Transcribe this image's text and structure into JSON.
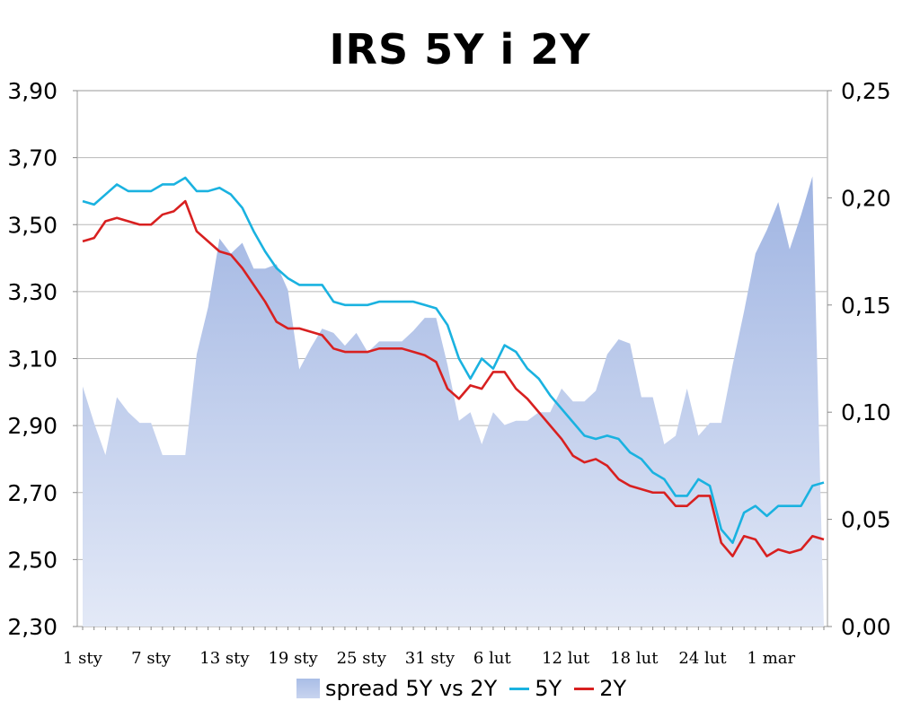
{
  "chart_data": {
    "type": "line",
    "title": "IRS 5Y i 2Y",
    "xlabel": "",
    "ylabel": "",
    "y_left": {
      "min": 2.3,
      "max": 3.9,
      "ticks": [
        "2,30",
        "2,50",
        "2,70",
        "2,90",
        "3,10",
        "3,30",
        "3,50",
        "3,70",
        "3,90"
      ]
    },
    "y_right": {
      "min": 0.0,
      "max": 0.25,
      "ticks": [
        "0,00",
        "0,05",
        "0,10",
        "0,15",
        "0,20",
        "0,25"
      ]
    },
    "x_ticks": [
      {
        "label": "1 sty",
        "index": 0
      },
      {
        "label": "7 sty",
        "index": 6
      },
      {
        "label": "13 sty",
        "index": 12
      },
      {
        "label": "19 sty",
        "index": 18
      },
      {
        "label": "25 sty",
        "index": 24
      },
      {
        "label": "31 sty",
        "index": 30
      },
      {
        "label": "6 lut",
        "index": 36
      },
      {
        "label": "12 lut",
        "index": 42
      },
      {
        "label": "18 lut",
        "index": 48
      },
      {
        "label": "24 lut",
        "index": 54
      },
      {
        "label": "1 mar",
        "index": 60
      }
    ],
    "n_points": 66,
    "grid": true,
    "legend_position": "bottom",
    "series": [
      {
        "name": "spread 5Y vs 2Y",
        "kind": "area",
        "axis": "right",
        "color": "#a9bde6",
        "values": [
          0.112,
          0.095,
          0.08,
          0.107,
          0.1,
          0.095,
          0.095,
          0.08,
          0.08,
          0.08,
          0.127,
          0.149,
          0.181,
          0.174,
          0.179,
          0.167,
          0.167,
          0.169,
          0.157,
          0.12,
          0.13,
          0.139,
          0.137,
          0.131,
          0.137,
          0.128,
          0.133,
          0.133,
          0.133,
          0.138,
          0.144,
          0.144,
          0.122,
          0.096,
          0.1,
          0.085,
          0.1,
          0.094,
          0.096,
          0.096,
          0.1,
          0.1,
          0.111,
          0.105,
          0.105,
          0.11,
          0.127,
          0.134,
          0.132,
          0.107,
          0.107,
          0.085,
          0.089,
          0.111,
          0.089,
          0.095,
          0.095,
          0.122,
          0.147,
          0.174,
          0.185,
          0.198,
          0.176,
          0.192,
          0.21,
          0.0
        ]
      },
      {
        "name": "5Y",
        "kind": "line",
        "axis": "left",
        "color": "#1ab2e0",
        "values": [
          3.57,
          3.56,
          3.59,
          3.62,
          3.6,
          3.6,
          3.6,
          3.62,
          3.62,
          3.64,
          3.6,
          3.6,
          3.61,
          3.59,
          3.55,
          3.48,
          3.42,
          3.37,
          3.34,
          3.32,
          3.32,
          3.32,
          3.27,
          3.26,
          3.26,
          3.26,
          3.27,
          3.27,
          3.27,
          3.27,
          3.26,
          3.25,
          3.2,
          3.1,
          3.04,
          3.1,
          3.07,
          3.14,
          3.12,
          3.07,
          3.04,
          2.99,
          2.95,
          2.91,
          2.87,
          2.86,
          2.87,
          2.86,
          2.82,
          2.8,
          2.76,
          2.74,
          2.69,
          2.69,
          2.74,
          2.72,
          2.59,
          2.55,
          2.64,
          2.66,
          2.63,
          2.66,
          2.66,
          2.66,
          2.72,
          2.73
        ]
      },
      {
        "name": "2Y",
        "kind": "line",
        "axis": "left",
        "color": "#d82020",
        "values": [
          3.45,
          3.46,
          3.51,
          3.52,
          3.51,
          3.5,
          3.5,
          3.53,
          3.54,
          3.57,
          3.48,
          3.45,
          3.42,
          3.41,
          3.37,
          3.32,
          3.27,
          3.21,
          3.19,
          3.19,
          3.18,
          3.17,
          3.13,
          3.12,
          3.12,
          3.12,
          3.13,
          3.13,
          3.13,
          3.12,
          3.11,
          3.09,
          3.01,
          2.98,
          3.02,
          3.01,
          3.06,
          3.06,
          3.01,
          2.98,
          2.94,
          2.9,
          2.86,
          2.81,
          2.79,
          2.8,
          2.78,
          2.74,
          2.72,
          2.71,
          2.7,
          2.7,
          2.66,
          2.66,
          2.69,
          2.69,
          2.55,
          2.51,
          2.57,
          2.56,
          2.51,
          2.53,
          2.52,
          2.53,
          2.57,
          2.56
        ]
      }
    ]
  }
}
